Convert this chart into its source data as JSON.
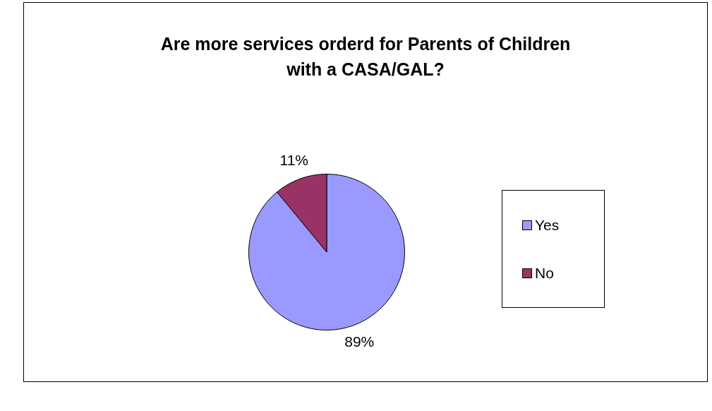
{
  "chart_data": {
    "type": "pie",
    "title": "Are more services orderd for Parents of Children with a CASA/GAL?",
    "categories": [
      "Yes",
      "No"
    ],
    "values": [
      89,
      11
    ],
    "colors": [
      "#9999ff",
      "#993366"
    ],
    "value_labels": [
      "89%",
      "11%"
    ],
    "legend": "right"
  }
}
